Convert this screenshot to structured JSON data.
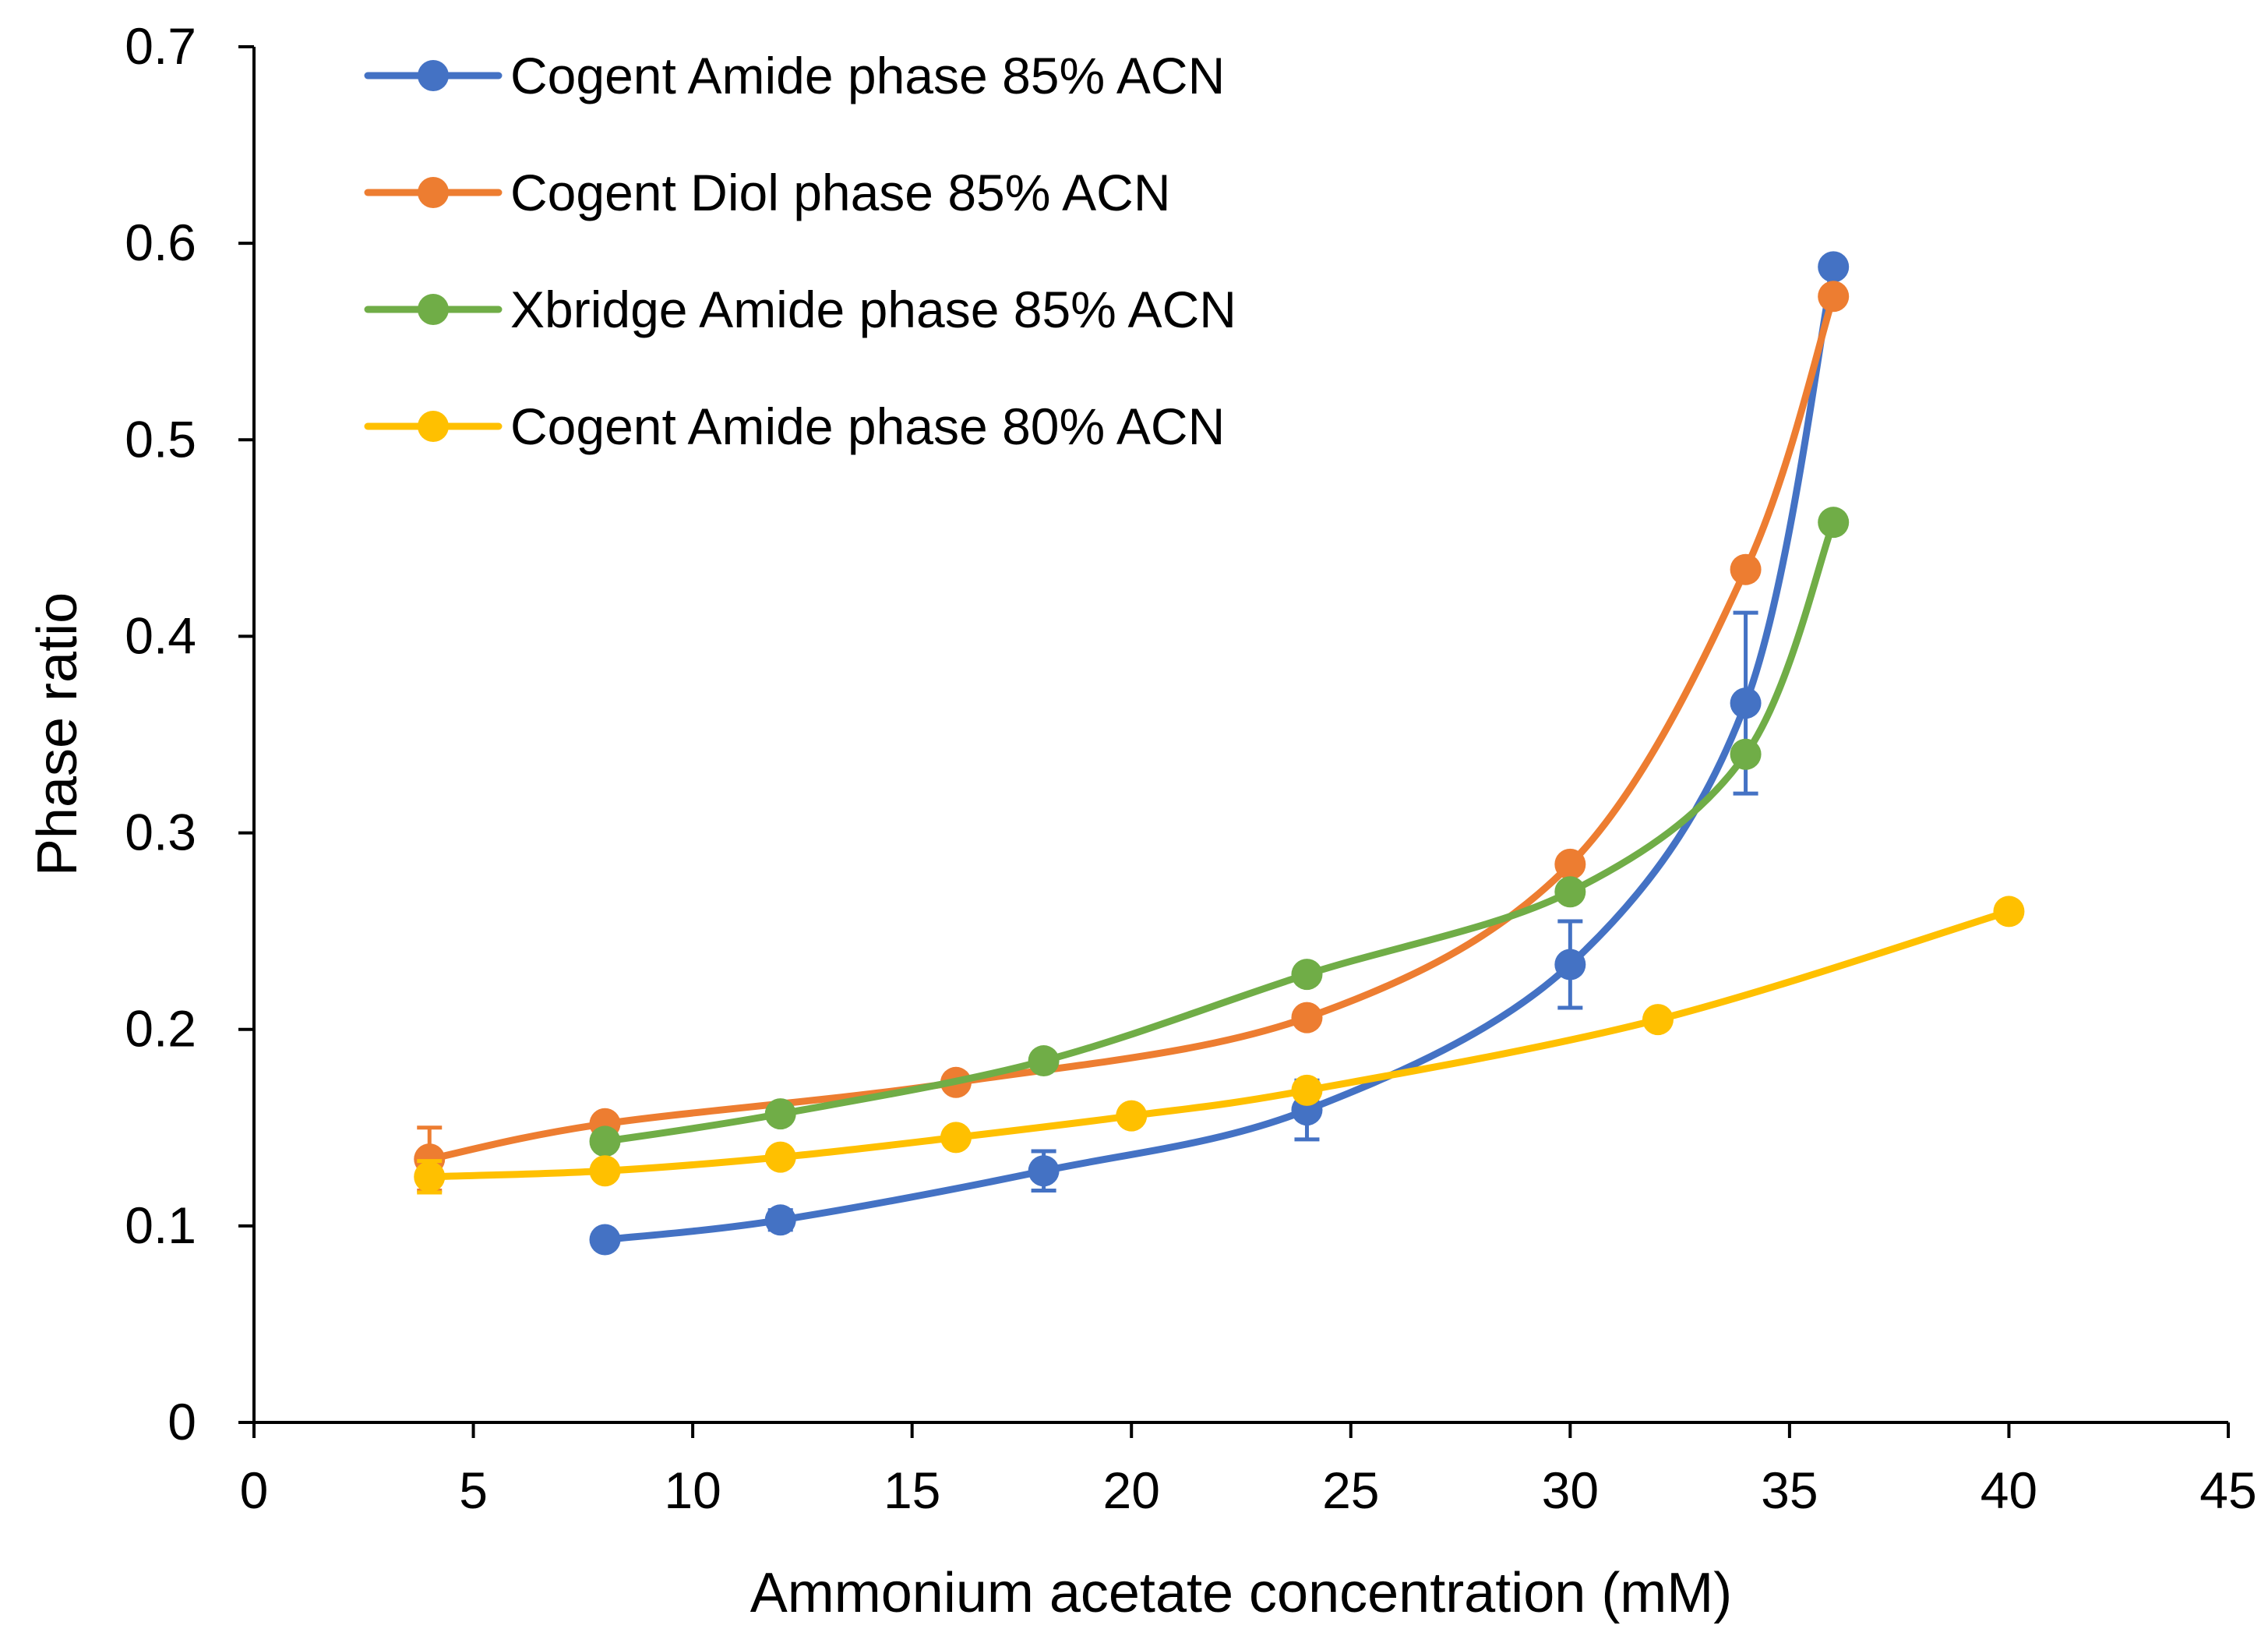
{
  "chart_data": {
    "type": "line",
    "title": "",
    "xlabel": "Ammonium acetate concentration (mM)",
    "ylabel": "Phase ratio",
    "xlim": [
      0,
      45
    ],
    "ylim": [
      0,
      0.7
    ],
    "xticks": [
      0,
      5,
      10,
      15,
      20,
      25,
      30,
      35,
      40,
      45
    ],
    "yticks": [
      0,
      0.1,
      0.2,
      0.3,
      0.4,
      0.5,
      0.6,
      0.7
    ],
    "xtick_labels": [
      "0",
      "5",
      "10",
      "15",
      "20",
      "25",
      "30",
      "35",
      "40",
      "45"
    ],
    "ytick_labels": [
      "0",
      "0.1",
      "0.2",
      "0.3",
      "0.4",
      "0.5",
      "0.6",
      "0.7"
    ],
    "grid": false,
    "legend_position": "top-left",
    "series": [
      {
        "name": "Cogent Amide phase 85% ACN",
        "color": "#4472C4",
        "x": [
          8,
          12,
          18,
          24,
          30,
          34,
          36
        ],
        "y": [
          0.093,
          0.103,
          0.128,
          0.159,
          0.233,
          0.366,
          0.588
        ],
        "error": [
          0,
          0.005,
          0.01,
          0.015,
          0.022,
          0.046,
          0
        ]
      },
      {
        "name": "Cogent Diol phase 85% ACN",
        "color": "#ED7D31",
        "x": [
          4,
          8,
          16,
          24,
          30,
          34,
          36
        ],
        "y": [
          0.134,
          0.152,
          0.173,
          0.206,
          0.284,
          0.434,
          0.573
        ],
        "error": [
          0.016,
          0,
          0,
          0,
          0,
          0,
          0
        ]
      },
      {
        "name": "Xbridge Amide phase 85% ACN",
        "color": "#70AD47",
        "x": [
          8,
          12,
          18,
          24,
          30,
          34,
          36
        ],
        "y": [
          0.143,
          0.157,
          0.184,
          0.228,
          0.27,
          0.34,
          0.458
        ],
        "error": [
          0,
          0,
          0,
          0,
          0,
          0,
          0
        ]
      },
      {
        "name": "Cogent Amide phase 80% ACN",
        "color": "#FFC000",
        "x": [
          4,
          8,
          12,
          16,
          20,
          24,
          32,
          40
        ],
        "y": [
          0.125,
          0.128,
          0.135,
          0.145,
          0.156,
          0.169,
          0.205,
          0.26
        ],
        "error": [
          0.008,
          0,
          0,
          0,
          0,
          0,
          0,
          0
        ]
      }
    ]
  }
}
